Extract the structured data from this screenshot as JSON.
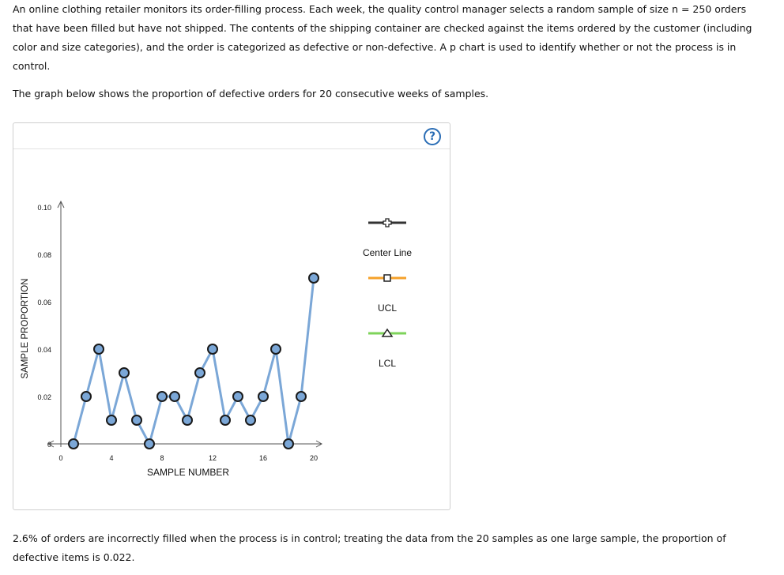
{
  "problem": {
    "intro_lines": [
      "An online clothing retailer monitors its order-filling process. Each week, the quality control manager selects a random sample of size n = 250 orders",
      "that have been filled but have not shipped. The contents of the shipping container are checked against the items ordered by the customer (including",
      "color and size categories), and the order is categorized as defective or non-defective. A p chart is used to identify whether or not the process is in",
      "control."
    ],
    "graph_lead": "The graph below shows the proportion of defective orders for 20 consecutive weeks of samples.",
    "conclusion_lines": [
      "2.6% of orders are incorrectly filled when the process is in control; treating the data from the 20 samples as one large sample, the proportion of",
      "defective items is 0.022."
    ]
  },
  "help_button": {
    "label": "?"
  },
  "legend": {
    "items": [
      {
        "label": "Center Line",
        "color": "#333333",
        "marker": "plus"
      },
      {
        "label": "UCL",
        "color": "#f5a12a",
        "marker": "square"
      },
      {
        "label": "LCL",
        "color": "#7ed35a",
        "marker": "triangle"
      }
    ]
  },
  "colors": {
    "series_line": "#7ba7d7",
    "point_fill": "#7ba7d7",
    "point_stroke": "#1a1a1a",
    "axis": "#555555"
  },
  "chart_data": {
    "type": "line",
    "xlabel": "SAMPLE NUMBER",
    "ylabel": "SAMPLE PROPORTION",
    "xlim": [
      0,
      20
    ],
    "ylim": [
      0,
      0.1
    ],
    "x_ticks": [
      0,
      4,
      8,
      12,
      16,
      20
    ],
    "y_ticks": [
      0,
      0.02,
      0.04,
      0.06,
      0.08,
      0.1
    ],
    "y_tick_labels": [
      "0",
      "0.02",
      "0.04",
      "0.06",
      "0.08",
      "0.10"
    ],
    "grid": false,
    "series": [
      {
        "x": [
          1,
          2,
          3,
          4,
          5,
          6,
          7,
          8,
          9,
          10,
          11,
          12,
          13,
          14,
          15,
          16,
          17,
          18,
          19,
          20
        ],
        "y": [
          0.0,
          0.02,
          0.04,
          0.01,
          0.03,
          0.01,
          0.0,
          0.02,
          0.02,
          0.01,
          0.03,
          0.04,
          0.01,
          0.02,
          0.01,
          0.02,
          0.04,
          0.0,
          0.02,
          0.07
        ]
      }
    ]
  }
}
